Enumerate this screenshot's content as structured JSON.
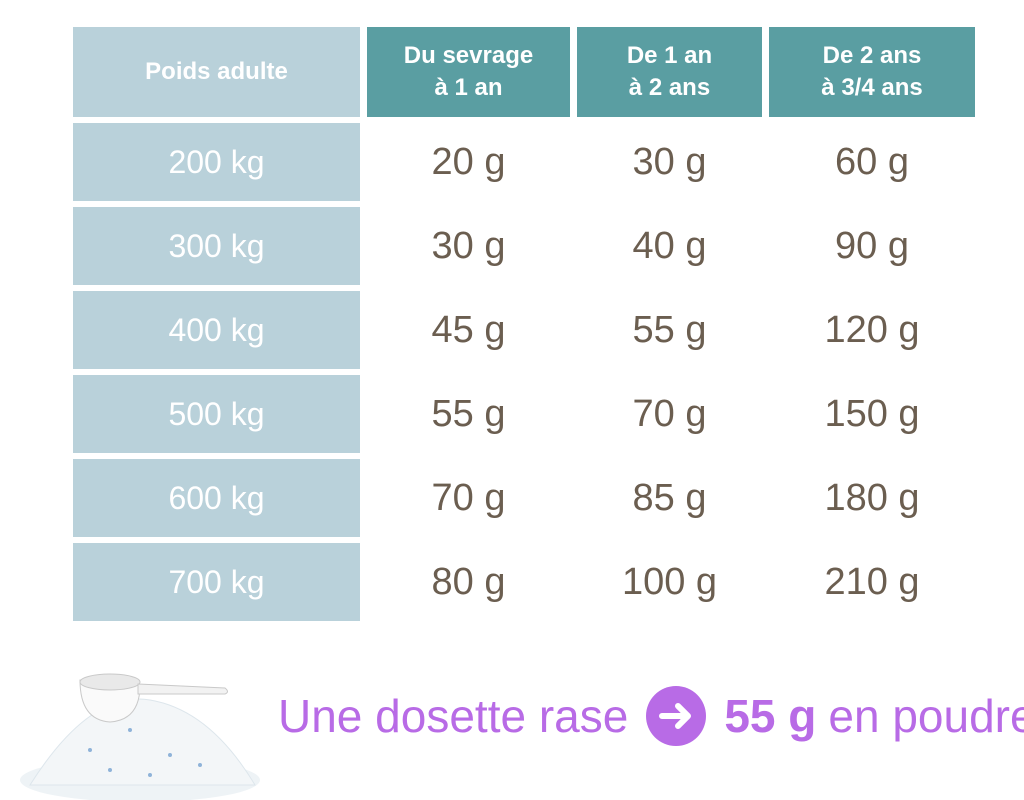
{
  "table": {
    "header": [
      [
        "Poids adulte"
      ],
      [
        "Du sevrage",
        "à 1 an"
      ],
      [
        "De 1 an",
        "à 2 ans"
      ],
      [
        "De 2 ans",
        "à 3/4 ans"
      ]
    ],
    "rows": [
      [
        "200 kg",
        "20 g",
        "30 g",
        "60 g"
      ],
      [
        "300 kg",
        "30 g",
        "40 g",
        "90 g"
      ],
      [
        "400 kg",
        "45 g",
        "55 g",
        "120 g"
      ],
      [
        "500 kg",
        "55 g",
        "70 g",
        "150 g"
      ],
      [
        "600 kg",
        "70 g",
        "85 g",
        "180 g"
      ],
      [
        "700 kg",
        "80 g",
        "100 g",
        "210 g"
      ]
    ]
  },
  "footer": {
    "text": "Une dosette rase",
    "amount": "55 g",
    "suffix": "en poudre"
  }
}
